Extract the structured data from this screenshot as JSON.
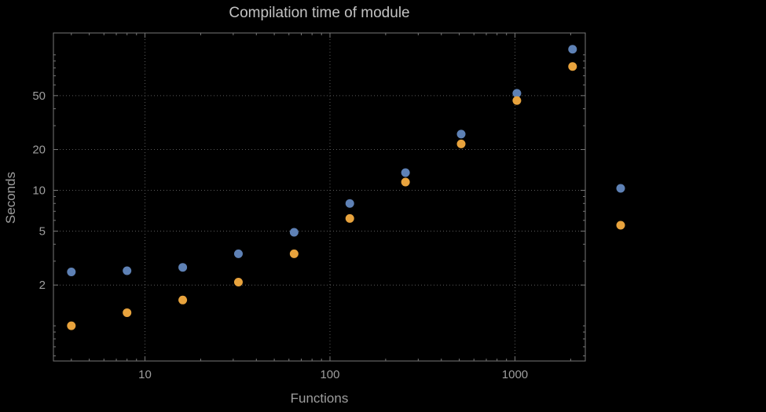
{
  "chart_data": {
    "type": "scatter",
    "title": "Compilation time of module",
    "xlabel": "Functions",
    "ylabel": "Seconds",
    "x_scale": "log",
    "y_scale": "log",
    "xlim": [
      3.2,
      2400
    ],
    "ylim": [
      0.55,
      145
    ],
    "x_ticks": [
      10,
      100,
      1000
    ],
    "y_ticks": [
      2,
      5,
      10,
      20,
      50
    ],
    "grid": true,
    "x": [
      4,
      8,
      16,
      32,
      64,
      128,
      256,
      512,
      1024,
      2048
    ],
    "series": [
      {
        "color": "#5E81B5",
        "values": [
          2.5,
          2.55,
          2.7,
          3.4,
          4.9,
          8.0,
          13.5,
          26,
          52,
          110
        ]
      },
      {
        "color": "#E8A33D",
        "values": [
          1.0,
          1.25,
          1.55,
          2.1,
          3.4,
          6.2,
          11.5,
          22,
          46,
          82
        ]
      }
    ],
    "legend": {
      "position": "right",
      "entries": [
        {
          "label": "",
          "color": "#5E81B5"
        },
        {
          "label": "",
          "color": "#E8A33D"
        }
      ]
    }
  },
  "colors": {
    "background": "#000000",
    "frame": "#787878",
    "grid": "#5a5a5a",
    "tick_label": "#9e9e9e",
    "title": "#c2c2c2",
    "axis_label": "#9e9e9e"
  }
}
